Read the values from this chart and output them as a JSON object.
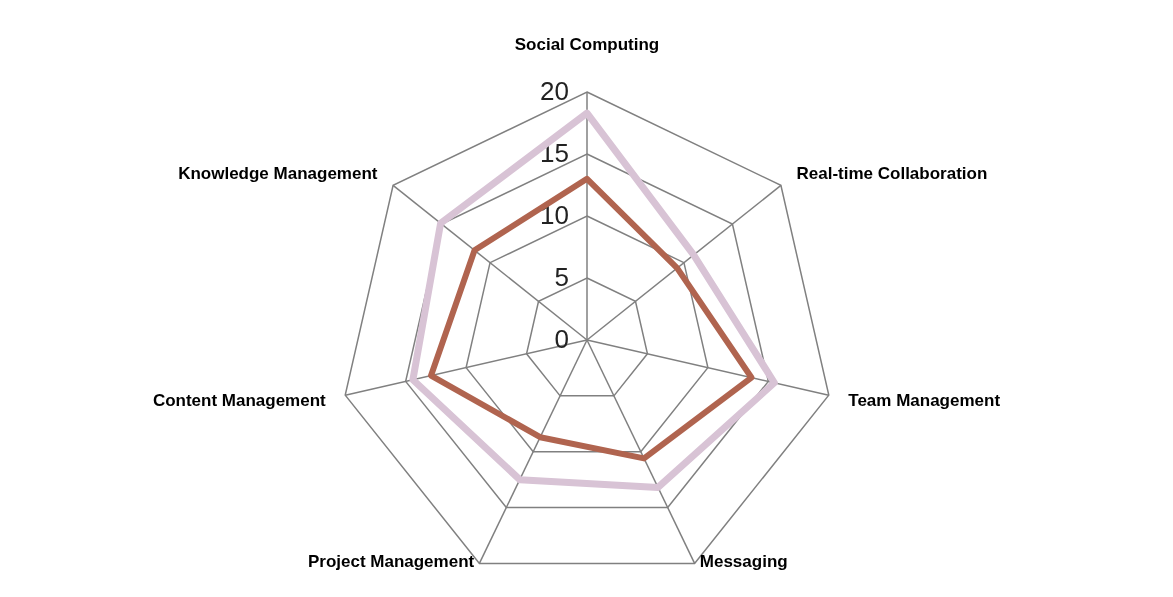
{
  "chart_data": {
    "type": "radar",
    "categories": [
      "Social Computing",
      "Real-time Collaboration",
      "Team Management",
      "Messaging",
      "Project Management",
      "Content Management",
      "Knowledge Management"
    ],
    "series": [
      {
        "color": "#d8c3d5",
        "values": [
          18.3,
          11,
          15.5,
          13.2,
          12.5,
          14.4,
          15.1
        ]
      },
      {
        "color": "#b0644f",
        "values": [
          13,
          9.3,
          13.6,
          10.6,
          8.7,
          12.9,
          11.6
        ]
      }
    ],
    "ylim": [
      0,
      20
    ],
    "yticks": [
      0,
      5,
      10,
      15,
      20
    ],
    "grid": true
  }
}
